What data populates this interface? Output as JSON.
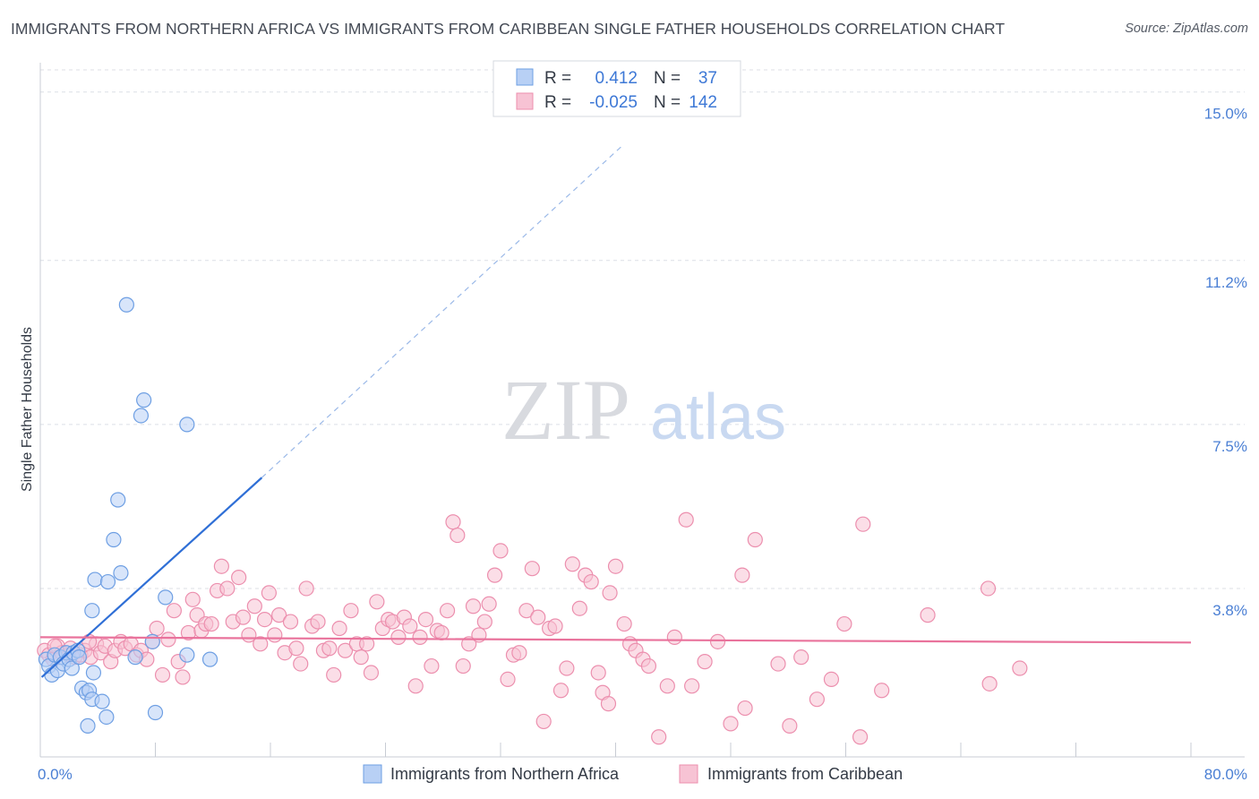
{
  "title": "IMMIGRANTS FROM NORTHERN AFRICA VS IMMIGRANTS FROM CARIBBEAN SINGLE FATHER HOUSEHOLDS CORRELATION CHART",
  "source": "Source: ZipAtlas.com",
  "watermark": {
    "zip": "ZIP",
    "atlas": "atlas"
  },
  "colors": {
    "blue_fill": "#b8d0f5",
    "blue_stroke": "#6e9fe3",
    "blue_line": "#2f6fd6",
    "pink_fill": "#f7c3d4",
    "pink_stroke": "#ec8fae",
    "pink_line": "#e9739c",
    "grid": "#dcdfe6",
    "tick_text": "#4a7fd4"
  },
  "legend_box": {
    "rows": [
      {
        "r_label": "R =",
        "r_value": "0.412",
        "n_label": "N =",
        "n_value": "37",
        "series": "blue"
      },
      {
        "r_label": "R =",
        "r_value": "-0.025",
        "n_label": "N =",
        "n_value": "142",
        "series": "pink"
      }
    ]
  },
  "chart_data": {
    "type": "scatter",
    "title": "IMMIGRANTS FROM NORTHERN AFRICA VS IMMIGRANTS FROM CARIBBEAN SINGLE FATHER HOUSEHOLDS CORRELATION CHART",
    "xlabel": "",
    "ylabel": "Single Father Households",
    "xlim": [
      0,
      80
    ],
    "ylim": [
      0,
      15.5
    ],
    "x_tick_labels": [
      "0.0%",
      "80.0%"
    ],
    "x_ticks": [
      0,
      8,
      16,
      24,
      32,
      40,
      48,
      56,
      64,
      72,
      80
    ],
    "y_ticks": [
      3.8,
      7.5,
      11.2,
      15.0
    ],
    "y_tick_labels": [
      "3.8%",
      "7.5%",
      "11.2%",
      "15.0%"
    ],
    "legend": [
      "Immigrants from Northern Africa",
      "Immigrants from Caribbean"
    ],
    "series": [
      {
        "name": "Immigrants from Northern Africa",
        "color": "blue",
        "trend": {
          "x0": 0.1,
          "y0": 1.8,
          "x1": 15.4,
          "y1": 6.3,
          "dash_to_x": 40.5,
          "dash_to_y": 13.8
        },
        "points": [
          [
            0.4,
            2.2
          ],
          [
            0.6,
            2.05
          ],
          [
            0.8,
            1.85
          ],
          [
            1.0,
            2.3
          ],
          [
            1.2,
            1.95
          ],
          [
            1.4,
            2.25
          ],
          [
            1.6,
            2.1
          ],
          [
            1.8,
            2.35
          ],
          [
            2.0,
            2.2
          ],
          [
            2.3,
            2.35
          ],
          [
            2.6,
            2.4
          ],
          [
            2.9,
            1.55
          ],
          [
            3.2,
            1.45
          ],
          [
            3.4,
            1.5
          ],
          [
            3.6,
            1.3
          ],
          [
            3.3,
            0.7
          ],
          [
            3.7,
            1.9
          ],
          [
            4.3,
            1.25
          ],
          [
            4.6,
            0.9
          ],
          [
            3.6,
            3.3
          ],
          [
            3.8,
            4.0
          ],
          [
            4.7,
            3.95
          ],
          [
            5.1,
            4.9
          ],
          [
            5.4,
            5.8
          ],
          [
            5.6,
            4.15
          ],
          [
            6.0,
            10.2
          ],
          [
            6.6,
            2.25
          ],
          [
            7.0,
            7.7
          ],
          [
            7.2,
            8.05
          ],
          [
            7.8,
            2.6
          ],
          [
            8.0,
            1.0
          ],
          [
            8.7,
            3.6
          ],
          [
            10.2,
            7.5
          ],
          [
            10.2,
            2.3
          ],
          [
            11.8,
            2.2
          ],
          [
            2.2,
            2.0
          ],
          [
            2.7,
            2.25
          ]
        ],
        "r": 0.412,
        "n": 37
      },
      {
        "name": "Immigrants from Caribbean",
        "color": "pink",
        "trend": {
          "x0": 0,
          "y0": 2.7,
          "x1": 80,
          "y1": 2.58
        },
        "points": [
          [
            0.3,
            2.4
          ],
          [
            0.6,
            2.3
          ],
          [
            0.9,
            2.2
          ],
          [
            1.2,
            2.5
          ],
          [
            1.5,
            2.35
          ],
          [
            2.0,
            2.3
          ],
          [
            2.4,
            2.25
          ],
          [
            2.8,
            2.3
          ],
          [
            3.1,
            2.4
          ],
          [
            3.5,
            2.25
          ],
          [
            3.9,
            2.55
          ],
          [
            4.2,
            2.35
          ],
          [
            4.5,
            2.5
          ],
          [
            4.9,
            2.15
          ],
          [
            5.2,
            2.4
          ],
          [
            5.6,
            2.6
          ],
          [
            5.9,
            2.45
          ],
          [
            6.3,
            2.55
          ],
          [
            6.7,
            2.3
          ],
          [
            7.0,
            2.4
          ],
          [
            7.4,
            2.2
          ],
          [
            7.8,
            2.6
          ],
          [
            8.1,
            2.9
          ],
          [
            8.5,
            1.85
          ],
          [
            8.9,
            2.65
          ],
          [
            9.3,
            3.3
          ],
          [
            9.6,
            2.15
          ],
          [
            9.9,
            1.8
          ],
          [
            10.3,
            2.8
          ],
          [
            10.6,
            3.55
          ],
          [
            10.9,
            3.2
          ],
          [
            11.2,
            2.85
          ],
          [
            11.5,
            3.0
          ],
          [
            11.9,
            3.0
          ],
          [
            12.3,
            3.75
          ],
          [
            12.6,
            4.3
          ],
          [
            13.0,
            3.8
          ],
          [
            13.4,
            3.05
          ],
          [
            13.8,
            4.05
          ],
          [
            14.1,
            3.15
          ],
          [
            14.5,
            2.75
          ],
          [
            14.9,
            3.4
          ],
          [
            15.3,
            2.55
          ],
          [
            15.6,
            3.1
          ],
          [
            15.9,
            3.7
          ],
          [
            16.3,
            2.75
          ],
          [
            16.6,
            3.2
          ],
          [
            17.0,
            2.35
          ],
          [
            17.4,
            3.05
          ],
          [
            17.8,
            2.45
          ],
          [
            18.1,
            2.1
          ],
          [
            18.5,
            3.8
          ],
          [
            18.9,
            2.95
          ],
          [
            19.3,
            3.05
          ],
          [
            19.7,
            2.4
          ],
          [
            20.1,
            2.45
          ],
          [
            20.4,
            1.85
          ],
          [
            20.8,
            2.9
          ],
          [
            21.2,
            2.4
          ],
          [
            21.6,
            3.3
          ],
          [
            22.0,
            2.55
          ],
          [
            22.3,
            2.25
          ],
          [
            22.7,
            2.55
          ],
          [
            23.0,
            1.9
          ],
          [
            23.4,
            3.5
          ],
          [
            23.8,
            2.9
          ],
          [
            24.2,
            3.1
          ],
          [
            24.5,
            3.05
          ],
          [
            24.9,
            2.7
          ],
          [
            25.3,
            3.15
          ],
          [
            25.7,
            2.95
          ],
          [
            26.1,
            1.6
          ],
          [
            26.4,
            2.7
          ],
          [
            26.8,
            3.1
          ],
          [
            27.2,
            2.05
          ],
          [
            27.6,
            2.85
          ],
          [
            27.9,
            2.8
          ],
          [
            28.3,
            3.3
          ],
          [
            28.7,
            5.3
          ],
          [
            29.0,
            5.0
          ],
          [
            29.4,
            2.05
          ],
          [
            29.8,
            2.55
          ],
          [
            30.1,
            3.4
          ],
          [
            30.5,
            2.75
          ],
          [
            30.9,
            3.05
          ],
          [
            31.2,
            3.45
          ],
          [
            31.6,
            4.1
          ],
          [
            32.0,
            4.65
          ],
          [
            32.5,
            1.75
          ],
          [
            32.9,
            2.3
          ],
          [
            33.3,
            2.35
          ],
          [
            33.8,
            3.3
          ],
          [
            34.2,
            4.25
          ],
          [
            34.6,
            3.15
          ],
          [
            35.0,
            0.8
          ],
          [
            35.4,
            2.9
          ],
          [
            35.8,
            2.95
          ],
          [
            36.2,
            1.5
          ],
          [
            36.6,
            2.0
          ],
          [
            37.0,
            4.35
          ],
          [
            37.5,
            3.35
          ],
          [
            37.9,
            4.1
          ],
          [
            38.3,
            3.95
          ],
          [
            38.8,
            1.9
          ],
          [
            39.1,
            1.45
          ],
          [
            39.5,
            1.2
          ],
          [
            39.6,
            3.7
          ],
          [
            40.0,
            4.3
          ],
          [
            40.6,
            3.0
          ],
          [
            41.0,
            2.55
          ],
          [
            41.4,
            2.4
          ],
          [
            41.9,
            2.2
          ],
          [
            42.3,
            2.05
          ],
          [
            43.0,
            0.45
          ],
          [
            43.6,
            1.6
          ],
          [
            44.1,
            2.7
          ],
          [
            44.9,
            5.35
          ],
          [
            45.3,
            1.6
          ],
          [
            46.2,
            2.15
          ],
          [
            47.1,
            2.6
          ],
          [
            48.0,
            0.75
          ],
          [
            49.0,
            1.1
          ],
          [
            48.8,
            4.1
          ],
          [
            49.7,
            4.9
          ],
          [
            51.3,
            2.1
          ],
          [
            52.1,
            0.7
          ],
          [
            52.9,
            2.25
          ],
          [
            54.0,
            1.3
          ],
          [
            55.0,
            1.75
          ],
          [
            55.9,
            3.0
          ],
          [
            57.0,
            0.45
          ],
          [
            57.2,
            5.25
          ],
          [
            58.5,
            1.5
          ],
          [
            61.7,
            3.2
          ],
          [
            66.0,
            1.65
          ],
          [
            65.9,
            3.8
          ],
          [
            68.1,
            2.0
          ],
          [
            1.0,
            2.5
          ],
          [
            2.1,
            2.45
          ],
          [
            3.4,
            2.6
          ]
        ],
        "r": -0.025,
        "n": 142
      }
    ]
  }
}
